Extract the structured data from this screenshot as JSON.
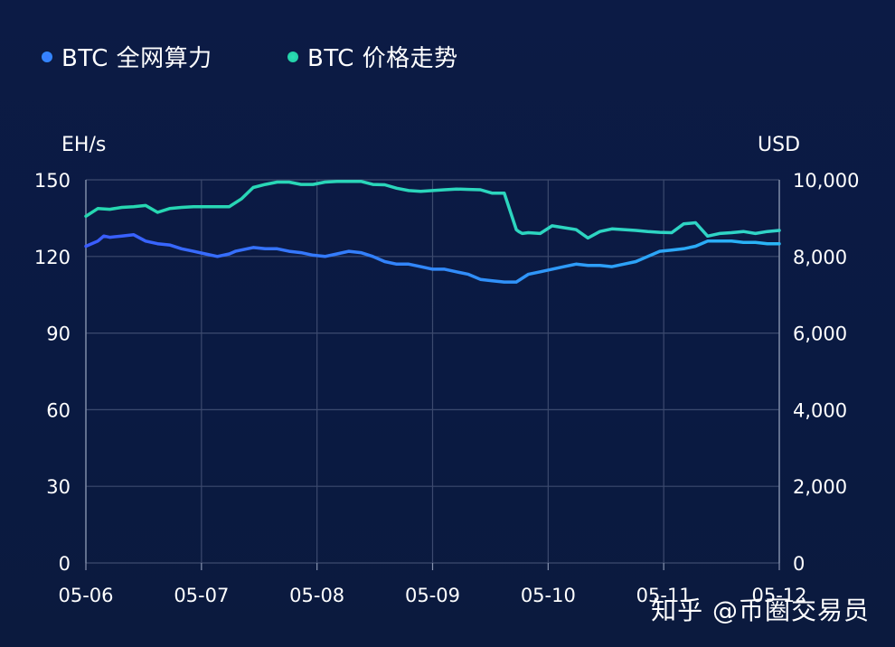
{
  "legend": {
    "hashrate_label": "BTC 全网算力",
    "price_label": "BTC 价格走势"
  },
  "axes": {
    "left_unit": "EH/s",
    "right_unit": "USD"
  },
  "watermark": "知乎 @币圈交易员",
  "colors": {
    "background": "#0b1a40",
    "grid": "#3c4a6e",
    "hashrate_start": "#3a5cff",
    "hashrate_end": "#29b6f6",
    "price_start": "#26d7b0",
    "price_end": "#30d4c8",
    "text": "#ffffff"
  },
  "chart_data": {
    "type": "line",
    "title": "",
    "x_ticks": [
      "05-06",
      "05-07",
      "05-08",
      "05-09",
      "05-10",
      "05-11",
      "05-12"
    ],
    "y_left": {
      "label": "EH/s",
      "ylim": [
        0,
        150
      ],
      "ticks": [
        0,
        30,
        60,
        90,
        120,
        150
      ]
    },
    "y_right": {
      "label": "USD",
      "ylim": [
        0,
        10000
      ],
      "ticks": [
        "0",
        "2,000",
        "4,000",
        "6,000",
        "8,000",
        "10,000"
      ]
    },
    "grid": true,
    "legend_position": "top-left",
    "series": [
      {
        "name": "BTC 全网算力",
        "axis": "left",
        "x": [
          0,
          0.1,
          0.15,
          0.2,
          0.3,
          0.4,
          0.5,
          0.6,
          0.7,
          0.8,
          0.9,
          1.0,
          1.1,
          1.2,
          1.25,
          1.3,
          1.4,
          1.5,
          1.6,
          1.7,
          1.8,
          1.9,
          2.0,
          2.1,
          2.2,
          2.3,
          2.4,
          2.5,
          2.6,
          2.7,
          2.8,
          2.9,
          3.0,
          3.1,
          3.2,
          3.3,
          3.4,
          3.5,
          3.6,
          3.7,
          3.8,
          3.9,
          4.0,
          4.1,
          4.2,
          4.3,
          4.4,
          4.5,
          4.6,
          4.7,
          4.8,
          4.9,
          5.0,
          5.1,
          5.2,
          5.3,
          5.4,
          5.5,
          5.6,
          5.7,
          5.8
        ],
        "values": [
          124,
          126,
          128,
          127.5,
          128,
          128.5,
          126,
          125,
          124.5,
          123,
          122,
          121,
          120,
          121,
          122,
          122.5,
          123.5,
          123,
          123,
          122,
          121.5,
          120.5,
          120,
          121,
          122,
          121.5,
          120,
          118,
          117,
          117,
          116,
          115,
          115,
          114,
          113,
          111,
          110.5,
          110,
          110,
          113,
          114,
          115,
          116,
          117,
          116.5,
          116.5,
          116,
          117,
          118,
          120,
          122,
          122.5,
          123,
          124,
          126,
          126,
          126,
          125.5,
          125.5,
          125,
          125
        ]
      },
      {
        "name": "BTC 价格走势",
        "axis": "right",
        "x": [
          0,
          0.1,
          0.2,
          0.3,
          0.4,
          0.5,
          0.6,
          0.7,
          0.8,
          0.9,
          1.0,
          1.1,
          1.2,
          1.3,
          1.4,
          1.5,
          1.6,
          1.7,
          1.8,
          1.9,
          2.0,
          2.1,
          2.2,
          2.3,
          2.4,
          2.5,
          2.6,
          2.7,
          2.8,
          2.9,
          3.0,
          3.1,
          3.2,
          3.3,
          3.4,
          3.5,
          3.6,
          3.62,
          3.65,
          3.7,
          3.8,
          3.9,
          4.0,
          4.1,
          4.2,
          4.3,
          4.4,
          4.5,
          4.6,
          4.7,
          4.8,
          4.9,
          5.0,
          5.1,
          5.2,
          5.3,
          5.4,
          5.5,
          5.6,
          5.7,
          5.8
        ],
        "values": [
          9050,
          9250,
          9230,
          9280,
          9300,
          9330,
          9150,
          9250,
          9280,
          9300,
          9300,
          9300,
          9300,
          9500,
          9800,
          9880,
          9940,
          9940,
          9880,
          9880,
          9940,
          9960,
          9960,
          9960,
          9880,
          9870,
          9780,
          9720,
          9700,
          9720,
          9740,
          9760,
          9750,
          9740,
          9650,
          9650,
          8700,
          8650,
          8600,
          8620,
          8600,
          8800,
          8750,
          8700,
          8480,
          8650,
          8720,
          8700,
          8680,
          8650,
          8630,
          8620,
          8850,
          8880,
          8530,
          8600,
          8620,
          8650,
          8600,
          8650,
          8680
        ]
      }
    ]
  }
}
